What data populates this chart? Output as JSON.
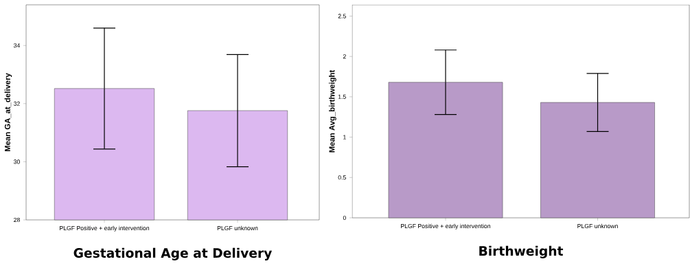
{
  "chart_data": [
    {
      "type": "bar",
      "title": "Gestational Age at Delivery",
      "ylabel": "Mean GA_at_delivery",
      "categories": [
        "PLGF Positive + early intervention",
        "PLGF unknown"
      ],
      "values": [
        32.52,
        31.76
      ],
      "errors": [
        2.08,
        1.93
      ],
      "color": "#dcb8f0",
      "ylim": [
        28,
        35.4
      ],
      "yticks": [
        28,
        30,
        32,
        34
      ]
    },
    {
      "type": "bar",
      "title": "Birthweight",
      "ylabel": "Mean Avg_birthweight",
      "categories": [
        "PLGF Positive + early intervention",
        "PLGF unknown"
      ],
      "values": [
        1.68,
        1.43
      ],
      "errors": [
        0.4,
        0.36
      ],
      "color": "#b89ac8",
      "ylim": [
        0,
        2.64
      ],
      "yticks": [
        0,
        0.5,
        1,
        1.5,
        2,
        2.5
      ]
    }
  ]
}
